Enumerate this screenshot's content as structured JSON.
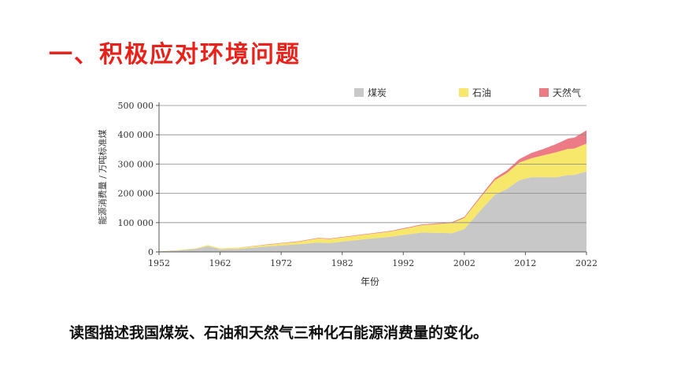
{
  "page": {
    "title": "一、积极应对环境问题",
    "question": "读图描述我国煤炭、石油和天然气三种化石能源消费量的变化。"
  },
  "colors": {
    "title": "#e8211b",
    "coal": "#c8c8c8",
    "oil": "#f7e86b",
    "gas": "#ec7b86",
    "axis": "#555555",
    "grid": "#8a8a8a"
  },
  "chart_data": {
    "type": "area",
    "stacked": true,
    "xlabel": "年份",
    "ylabel": "能源消费量 / 万吨标准煤",
    "xlim": [
      1952,
      2022
    ],
    "ylim": [
      0,
      500000
    ],
    "xticks": [
      1952,
      1962,
      1972,
      1982,
      1992,
      2002,
      2012,
      2022
    ],
    "yticks": [
      0,
      100000,
      200000,
      300000,
      400000,
      500000
    ],
    "ytick_labels": [
      "0",
      "100 000",
      "200 000",
      "300 000",
      "400 000",
      "500 000"
    ],
    "grid": true,
    "legend_position": "top-right",
    "x": [
      1952,
      1955,
      1958,
      1960,
      1962,
      1965,
      1970,
      1975,
      1978,
      1980,
      1985,
      1990,
      1995,
      2000,
      2002,
      2005,
      2007,
      2009,
      2011,
      2013,
      2015,
      2017,
      2019,
      2020,
      2022
    ],
    "series": [
      {
        "name": "煤炭",
        "values": [
          2000,
          5000,
          10000,
          20000,
          9000,
          10000,
          19000,
          26000,
          32000,
          30000,
          42000,
          52000,
          66000,
          64000,
          78000,
          150000,
          195000,
          215000,
          245000,
          255000,
          255000,
          255000,
          262000,
          263000,
          275000
        ]
      },
      {
        "name": "石油",
        "values": [
          500,
          1000,
          2000,
          3000,
          3000,
          4000,
          6000,
          9000,
          14000,
          14000,
          15000,
          18000,
          25000,
          35000,
          38000,
          45000,
          50000,
          55000,
          60000,
          65000,
          75000,
          85000,
          90000,
          90000,
          95000
        ]
      },
      {
        "name": "天然气",
        "values": [
          0,
          0,
          0,
          0,
          0,
          500,
          1000,
          1500,
          1800,
          1800,
          1900,
          2000,
          2500,
          3000,
          3500,
          5000,
          7000,
          9000,
          12000,
          18000,
          22000,
          28000,
          35000,
          37000,
          45000
        ]
      }
    ]
  }
}
